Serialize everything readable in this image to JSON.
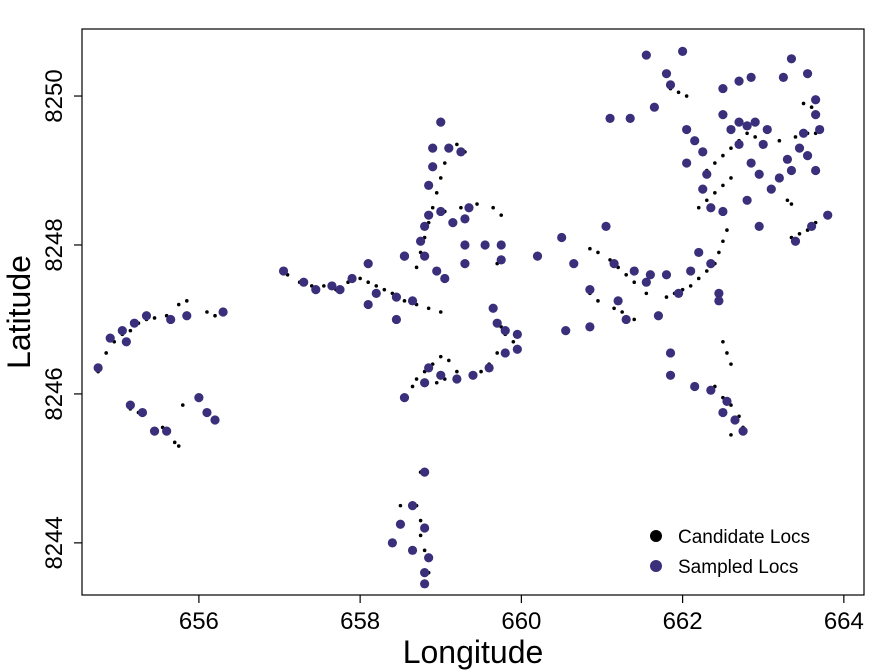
{
  "chart_data": {
    "type": "scatter",
    "title": "",
    "xlabel": "Longitude",
    "ylabel": "Latitude",
    "xlim": [
      654.55,
      664.25
    ],
    "ylim": [
      8243.3,
      8250.9
    ],
    "xticks": [
      656,
      658,
      660,
      662,
      664
    ],
    "yticks": [
      8244,
      8246,
      8248,
      8250
    ],
    "grid": false,
    "legend_position": "bottom-right",
    "colors": {
      "candidate": "#000000",
      "sampled": "#3a2f7a"
    },
    "series": [
      {
        "name": "Candidate Locs",
        "marker": "small-dot",
        "points": [
          [
            654.75,
            8246.3
          ],
          [
            654.85,
            8246.55
          ],
          [
            654.95,
            8246.7
          ],
          [
            655.05,
            8246.8
          ],
          [
            655.15,
            8246.85
          ],
          [
            655.25,
            8246.95
          ],
          [
            655.35,
            8247.0
          ],
          [
            655.45,
            8247.02
          ],
          [
            655.6,
            8247.05
          ],
          [
            655.75,
            8247.2
          ],
          [
            655.85,
            8247.25
          ],
          [
            655.15,
            8245.8
          ],
          [
            655.25,
            8245.75
          ],
          [
            655.55,
            8245.55
          ],
          [
            655.7,
            8245.35
          ],
          [
            655.75,
            8245.3
          ],
          [
            655.8,
            8245.85
          ],
          [
            656.1,
            8247.1
          ],
          [
            656.2,
            8247.05
          ],
          [
            657.1,
            8247.6
          ],
          [
            657.25,
            8247.5
          ],
          [
            657.4,
            8247.45
          ],
          [
            657.55,
            8247.45
          ],
          [
            657.7,
            8247.4
          ],
          [
            657.85,
            8247.5
          ],
          [
            658.0,
            8247.55
          ],
          [
            658.1,
            8247.5
          ],
          [
            658.2,
            8247.45
          ],
          [
            658.3,
            8247.4
          ],
          [
            658.4,
            8247.35
          ],
          [
            658.55,
            8247.25
          ],
          [
            658.7,
            8247.2
          ],
          [
            658.85,
            8247.15
          ],
          [
            659.0,
            8247.1
          ],
          [
            658.7,
            8247.7
          ],
          [
            658.75,
            8247.9
          ],
          [
            658.8,
            8248.1
          ],
          [
            658.85,
            8248.3
          ],
          [
            658.9,
            8248.5
          ],
          [
            658.95,
            8248.7
          ],
          [
            659.0,
            8248.9
          ],
          [
            659.05,
            8249.1
          ],
          [
            659.1,
            8249.3
          ],
          [
            659.2,
            8249.35
          ],
          [
            659.3,
            8249.25
          ],
          [
            659.05,
            8248.45
          ],
          [
            659.25,
            8248.5
          ],
          [
            659.45,
            8248.55
          ],
          [
            659.65,
            8248.5
          ],
          [
            659.75,
            8248.4
          ],
          [
            659.7,
            8247.75
          ],
          [
            659.75,
            8246.9
          ],
          [
            659.8,
            8246.8
          ],
          [
            659.9,
            8246.7
          ],
          [
            659.95,
            8246.6
          ],
          [
            659.7,
            8246.55
          ],
          [
            659.6,
            8246.4
          ],
          [
            659.5,
            8246.3
          ],
          [
            658.8,
            8246.3
          ],
          [
            658.9,
            8246.4
          ],
          [
            659.0,
            8246.5
          ],
          [
            659.1,
            8246.45
          ],
          [
            659.2,
            8246.3
          ],
          [
            658.7,
            8246.2
          ],
          [
            658.65,
            8246.1
          ],
          [
            658.95,
            8246.15
          ],
          [
            659.05,
            8246.2
          ],
          [
            658.75,
            8244.95
          ],
          [
            658.7,
            8244.5
          ],
          [
            658.75,
            8244.3
          ],
          [
            658.75,
            8244.1
          ],
          [
            658.8,
            8243.9
          ],
          [
            658.85,
            8243.6
          ],
          [
            658.5,
            8244.5
          ],
          [
            660.85,
            8247.95
          ],
          [
            660.95,
            8247.9
          ],
          [
            661.1,
            8247.8
          ],
          [
            661.2,
            8247.7
          ],
          [
            661.3,
            8247.6
          ],
          [
            661.4,
            8247.5
          ],
          [
            661.55,
            8247.35
          ],
          [
            660.85,
            8247.35
          ],
          [
            660.95,
            8247.25
          ],
          [
            661.15,
            8247.15
          ],
          [
            661.25,
            8247.1
          ],
          [
            661.4,
            8247.0
          ],
          [
            661.8,
            8247.3
          ],
          [
            661.9,
            8247.35
          ],
          [
            662.0,
            8247.4
          ],
          [
            662.1,
            8247.45
          ],
          [
            662.2,
            8247.55
          ],
          [
            662.3,
            8247.65
          ],
          [
            662.4,
            8247.75
          ],
          [
            662.45,
            8247.9
          ],
          [
            662.5,
            8248.05
          ],
          [
            662.55,
            8248.2
          ],
          [
            662.2,
            8248.5
          ],
          [
            662.3,
            8248.6
          ],
          [
            662.4,
            8248.7
          ],
          [
            662.5,
            8248.8
          ],
          [
            662.6,
            8248.9
          ],
          [
            662.3,
            8249.0
          ],
          [
            662.4,
            8249.1
          ],
          [
            662.5,
            8249.2
          ],
          [
            662.6,
            8249.3
          ],
          [
            662.7,
            8249.4
          ],
          [
            662.8,
            8249.5
          ],
          [
            662.9,
            8249.45
          ],
          [
            663.0,
            8249.35
          ],
          [
            663.2,
            8249.4
          ],
          [
            663.4,
            8249.45
          ],
          [
            663.55,
            8249.5
          ],
          [
            663.65,
            8249.5
          ],
          [
            663.35,
            8248.1
          ],
          [
            663.45,
            8248.15
          ],
          [
            663.55,
            8248.2
          ],
          [
            663.65,
            8248.3
          ],
          [
            663.3,
            8248.6
          ],
          [
            663.35,
            8248.55
          ],
          [
            662.5,
            8246.7
          ],
          [
            662.55,
            8246.55
          ],
          [
            662.6,
            8246.4
          ],
          [
            662.4,
            8246.1
          ],
          [
            662.5,
            8245.95
          ],
          [
            662.6,
            8245.85
          ],
          [
            662.7,
            8245.7
          ],
          [
            662.75,
            8245.55
          ],
          [
            662.6,
            8245.45
          ],
          [
            661.85,
            8250.1
          ],
          [
            661.95,
            8250.05
          ],
          [
            662.05,
            8250.0
          ],
          [
            663.5,
            8249.9
          ],
          [
            663.6,
            8249.85
          ]
        ]
      },
      {
        "name": "Sampled Locs",
        "marker": "circle",
        "points": [
          [
            654.75,
            8246.35
          ],
          [
            654.9,
            8246.75
          ],
          [
            655.05,
            8246.85
          ],
          [
            655.1,
            8246.7
          ],
          [
            655.2,
            8246.95
          ],
          [
            655.35,
            8247.05
          ],
          [
            655.65,
            8247.0
          ],
          [
            655.85,
            8247.05
          ],
          [
            656.3,
            8247.1
          ],
          [
            655.15,
            8245.85
          ],
          [
            655.3,
            8245.75
          ],
          [
            655.45,
            8245.5
          ],
          [
            655.6,
            8245.5
          ],
          [
            656.0,
            8245.95
          ],
          [
            656.1,
            8245.75
          ],
          [
            656.2,
            8245.65
          ],
          [
            657.05,
            8247.65
          ],
          [
            657.3,
            8247.5
          ],
          [
            657.45,
            8247.4
          ],
          [
            657.65,
            8247.45
          ],
          [
            657.75,
            8247.4
          ],
          [
            657.9,
            8247.55
          ],
          [
            658.1,
            8247.75
          ],
          [
            658.1,
            8247.2
          ],
          [
            658.2,
            8247.35
          ],
          [
            658.45,
            8247.3
          ],
          [
            658.65,
            8247.25
          ],
          [
            658.45,
            8247.0
          ],
          [
            658.55,
            8247.85
          ],
          [
            658.75,
            8248.05
          ],
          [
            658.8,
            8248.25
          ],
          [
            658.85,
            8248.4
          ],
          [
            658.85,
            8248.8
          ],
          [
            658.9,
            8249.05
          ],
          [
            658.9,
            8249.3
          ],
          [
            659.0,
            8249.65
          ],
          [
            659.1,
            8249.3
          ],
          [
            659.25,
            8249.25
          ],
          [
            659.0,
            8248.45
          ],
          [
            659.15,
            8248.3
          ],
          [
            659.3,
            8248.35
          ],
          [
            659.35,
            8248.5
          ],
          [
            658.8,
            8247.85
          ],
          [
            658.95,
            8247.65
          ],
          [
            659.05,
            8247.55
          ],
          [
            659.3,
            8248.0
          ],
          [
            659.55,
            8248.0
          ],
          [
            659.75,
            8248.0
          ],
          [
            659.75,
            8247.8
          ],
          [
            659.3,
            8247.75
          ],
          [
            658.55,
            8247.85
          ],
          [
            659.65,
            8247.15
          ],
          [
            659.7,
            8246.95
          ],
          [
            659.8,
            8246.85
          ],
          [
            659.95,
            8246.8
          ],
          [
            659.95,
            8246.6
          ],
          [
            659.8,
            8246.55
          ],
          [
            659.6,
            8246.35
          ],
          [
            659.4,
            8246.25
          ],
          [
            659.2,
            8246.2
          ],
          [
            659.0,
            8246.25
          ],
          [
            658.85,
            8246.35
          ],
          [
            658.8,
            8246.15
          ],
          [
            658.55,
            8245.95
          ],
          [
            658.8,
            8244.95
          ],
          [
            658.65,
            8244.5
          ],
          [
            658.5,
            8244.25
          ],
          [
            658.4,
            8244.0
          ],
          [
            658.8,
            8244.2
          ],
          [
            658.65,
            8243.9
          ],
          [
            658.85,
            8243.8
          ],
          [
            658.8,
            8243.6
          ],
          [
            658.8,
            8243.45
          ],
          [
            660.2,
            8247.85
          ],
          [
            660.5,
            8248.1
          ],
          [
            660.65,
            8247.75
          ],
          [
            660.55,
            8246.85
          ],
          [
            660.85,
            8246.9
          ],
          [
            660.85,
            8247.4
          ],
          [
            661.05,
            8248.25
          ],
          [
            661.15,
            8247.75
          ],
          [
            661.2,
            8247.25
          ],
          [
            661.3,
            8247.0
          ],
          [
            661.4,
            8247.65
          ],
          [
            661.55,
            8247.5
          ],
          [
            661.6,
            8247.6
          ],
          [
            661.7,
            8247.05
          ],
          [
            661.8,
            8247.6
          ],
          [
            661.85,
            8246.55
          ],
          [
            661.85,
            8246.25
          ],
          [
            661.95,
            8247.35
          ],
          [
            661.1,
            8249.7
          ],
          [
            661.35,
            8249.7
          ],
          [
            661.55,
            8250.55
          ],
          [
            661.65,
            8249.85
          ],
          [
            661.8,
            8250.3
          ],
          [
            662.0,
            8250.6
          ],
          [
            661.85,
            8250.15
          ],
          [
            662.05,
            8249.55
          ],
          [
            662.15,
            8249.4
          ],
          [
            662.25,
            8249.25
          ],
          [
            662.3,
            8248.95
          ],
          [
            662.25,
            8248.75
          ],
          [
            662.35,
            8248.5
          ],
          [
            662.5,
            8248.45
          ],
          [
            662.5,
            8249.75
          ],
          [
            662.6,
            8249.55
          ],
          [
            662.7,
            8249.65
          ],
          [
            662.7,
            8249.35
          ],
          [
            662.8,
            8249.6
          ],
          [
            662.85,
            8249.1
          ],
          [
            662.95,
            8248.95
          ],
          [
            663.0,
            8249.35
          ],
          [
            663.1,
            8248.75
          ],
          [
            663.2,
            8248.9
          ],
          [
            663.3,
            8249.15
          ],
          [
            663.35,
            8249.0
          ],
          [
            663.45,
            8249.3
          ],
          [
            663.55,
            8249.2
          ],
          [
            663.65,
            8249.0
          ],
          [
            663.5,
            8249.5
          ],
          [
            663.65,
            8249.75
          ],
          [
            663.65,
            8249.95
          ],
          [
            663.25,
            8250.25
          ],
          [
            663.35,
            8250.5
          ],
          [
            663.55,
            8250.3
          ],
          [
            663.7,
            8249.55
          ],
          [
            663.8,
            8248.4
          ],
          [
            663.6,
            8248.25
          ],
          [
            663.4,
            8248.05
          ],
          [
            662.8,
            8248.6
          ],
          [
            662.95,
            8248.25
          ],
          [
            662.45,
            8247.35
          ],
          [
            662.35,
            8247.75
          ],
          [
            662.2,
            8247.9
          ],
          [
            662.1,
            8247.65
          ],
          [
            662.05,
            8249.1
          ],
          [
            662.5,
            8250.1
          ],
          [
            662.7,
            8250.2
          ],
          [
            662.85,
            8250.25
          ],
          [
            662.9,
            8249.65
          ],
          [
            663.05,
            8249.55
          ],
          [
            662.45,
            8247.25
          ],
          [
            662.35,
            8246.05
          ],
          [
            662.5,
            8245.75
          ],
          [
            662.65,
            8245.65
          ],
          [
            662.75,
            8245.5
          ],
          [
            662.55,
            8245.9
          ],
          [
            662.15,
            8246.1
          ]
        ]
      }
    ],
    "legend": [
      {
        "label": "Candidate Locs",
        "series": "Candidate Locs"
      },
      {
        "label": "Sampled Locs",
        "series": "Sampled Locs"
      }
    ]
  }
}
